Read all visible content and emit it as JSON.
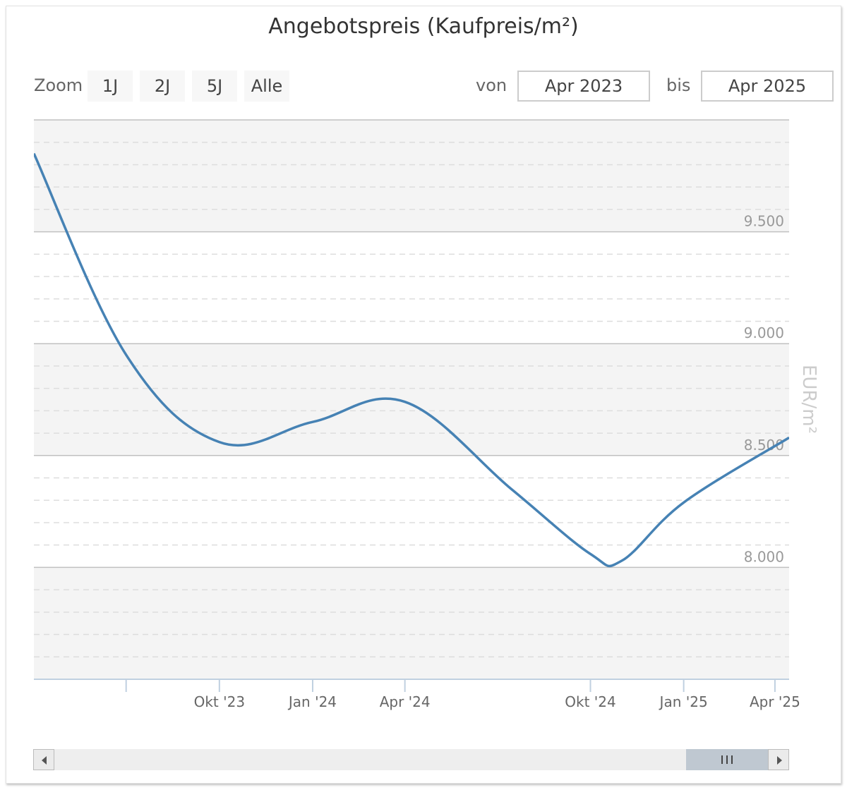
{
  "title": "Angebotspreis (Kaufpreis/m²)",
  "zoom": {
    "label": "Zoom",
    "buttons": [
      "1J",
      "2J",
      "5J",
      "Alle"
    ]
  },
  "range": {
    "from_label": "von",
    "from_value": "Apr 2023",
    "to_label": "bis",
    "to_value": "Apr 2025"
  },
  "colors": {
    "line": "#4682b4",
    "band": "#f4f4f4",
    "grid_major": "#c0c0c0",
    "grid_minor": "#dddddd",
    "tick_label": "#999999",
    "axis_title": "#cccccc",
    "x_label": "#666666",
    "axis_line": "#c0d0e0"
  },
  "chart_data": {
    "type": "line",
    "title": "Angebotspreis (Kaufpreis/m²)",
    "ylabel": "EUR/m²",
    "xlabel": "",
    "ylim": [
      7500,
      10000
    ],
    "xlim": [
      "2023-04-01",
      "2025-04-15"
    ],
    "grid": true,
    "y_ticks": [
      {
        "value": 8000,
        "label": "8.000"
      },
      {
        "value": 8500,
        "label": "8.500"
      },
      {
        "value": 9000,
        "label": "9.000"
      },
      {
        "value": 9500,
        "label": "9.500"
      }
    ],
    "x_ticks": [
      {
        "date": "2023-07-01",
        "label": ""
      },
      {
        "date": "2023-10-01",
        "label": "Okt '23"
      },
      {
        "date": "2024-01-01",
        "label": "Jan '24"
      },
      {
        "date": "2024-04-01",
        "label": "Apr '24"
      },
      {
        "date": "2024-10-01",
        "label": "Okt '24"
      },
      {
        "date": "2025-01-01",
        "label": "Jan '25"
      },
      {
        "date": "2025-04-01",
        "label": "Apr '25"
      }
    ],
    "series": [
      {
        "name": "",
        "points": [
          {
            "x": "2023-04-01",
            "y": 9850
          },
          {
            "x": "2023-07-01",
            "y": 8950
          },
          {
            "x": "2023-10-01",
            "y": 8560
          },
          {
            "x": "2024-01-01",
            "y": 8650
          },
          {
            "x": "2024-04-01",
            "y": 8740
          },
          {
            "x": "2024-07-15",
            "y": 8350
          },
          {
            "x": "2024-10-01",
            "y": 8060
          },
          {
            "x": "2024-11-01",
            "y": 8030
          },
          {
            "x": "2025-01-01",
            "y": 8290
          },
          {
            "x": "2025-04-15",
            "y": 8580
          }
        ]
      }
    ]
  }
}
